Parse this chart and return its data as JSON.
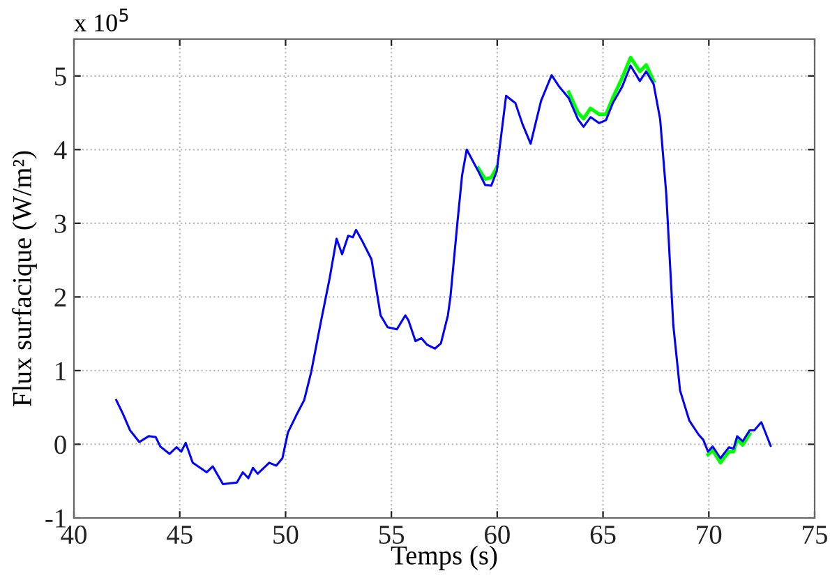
{
  "chart_data": {
    "type": "line",
    "xlabel": "Temps (s)",
    "ylabel": "Flux surfacique (W/m²)",
    "annotations": [
      "x 10$^{5}$"
    ],
    "x": [
      42.0,
      42.32,
      42.65,
      43.09,
      43.53,
      43.86,
      44.08,
      44.52,
      44.85,
      45.07,
      45.28,
      45.61,
      46.27,
      46.56,
      47.04,
      47.7,
      47.98,
      48.24,
      48.46,
      48.68,
      49.23,
      49.56,
      49.85,
      50.11,
      50.5,
      50.88,
      51.21,
      51.64,
      52.08,
      52.41,
      52.67,
      52.96,
      53.18,
      53.33,
      53.62,
      54.06,
      54.49,
      54.82,
      55.26,
      55.66,
      55.81,
      56.14,
      56.42,
      56.69,
      57.06,
      57.34,
      57.67,
      57.79,
      58.12,
      58.34,
      58.56,
      59.1,
      59.43,
      59.72,
      59.98,
      60.42,
      60.86,
      61.19,
      61.58,
      62.07,
      62.57,
      62.94,
      63.38,
      63.82,
      64.08,
      64.41,
      64.81,
      65.14,
      65.46,
      65.9,
      66.3,
      66.74,
      67.04,
      67.39,
      67.7,
      67.99,
      68.32,
      68.64,
      69.08,
      69.52,
      69.74,
      69.96,
      70.18,
      70.55,
      70.95,
      71.17,
      71.34,
      71.6,
      71.93,
      72.15,
      72.48,
      72.92
    ],
    "series": [
      {
        "color": "#00ff00",
        "values": [
          null,
          null,
          null,
          null,
          null,
          null,
          null,
          null,
          null,
          null,
          null,
          null,
          null,
          null,
          null,
          null,
          null,
          null,
          null,
          null,
          null,
          null,
          null,
          null,
          null,
          null,
          null,
          null,
          null,
          null,
          null,
          null,
          null,
          null,
          null,
          null,
          null,
          null,
          null,
          null,
          null,
          null,
          null,
          null,
          null,
          null,
          null,
          null,
          null,
          null,
          null,
          3.75,
          3.6,
          3.62,
          3.76,
          null,
          null,
          null,
          null,
          null,
          null,
          null,
          4.78,
          4.5,
          4.42,
          4.56,
          4.48,
          4.48,
          4.7,
          4.97,
          5.25,
          5.06,
          5.15,
          4.93,
          null,
          null,
          null,
          null,
          null,
          null,
          null,
          -0.14,
          -0.08,
          -0.25,
          -0.1,
          -0.1,
          0.07,
          -0.01,
          0.14,
          null,
          null,
          null
        ]
      },
      {
        "color": "#0000ff",
        "values": [
          0.6,
          0.41,
          0.19,
          0.03,
          0.11,
          0.1,
          -0.03,
          -0.13,
          -0.04,
          -0.1,
          0.02,
          -0.25,
          -0.38,
          -0.3,
          -0.54,
          -0.52,
          -0.38,
          -0.46,
          -0.32,
          -0.4,
          -0.25,
          -0.29,
          -0.19,
          0.16,
          0.39,
          0.6,
          0.98,
          1.62,
          2.25,
          2.79,
          2.58,
          2.83,
          2.81,
          2.91,
          2.76,
          2.51,
          1.75,
          1.59,
          1.56,
          1.75,
          1.68,
          1.4,
          1.44,
          1.35,
          1.3,
          1.37,
          1.75,
          2.0,
          3.01,
          3.65,
          4.0,
          3.71,
          3.52,
          3.51,
          3.71,
          4.73,
          4.63,
          4.35,
          4.08,
          4.66,
          5.01,
          4.85,
          4.7,
          4.41,
          4.31,
          4.44,
          4.36,
          4.4,
          4.63,
          4.85,
          5.14,
          4.93,
          5.06,
          4.89,
          4.41,
          3.39,
          1.62,
          0.73,
          0.32,
          0.13,
          0.06,
          -0.1,
          -0.03,
          -0.19,
          -0.04,
          -0.06,
          0.11,
          0.04,
          0.19,
          0.19,
          0.3,
          -0.02
        ]
      }
    ],
    "xlim": [
      40,
      75
    ],
    "xticks": [
      40,
      45,
      50,
      55,
      60,
      65,
      70,
      75
    ],
    "ylim": [
      -1,
      5.5
    ],
    "yticks": [
      -1,
      0,
      1,
      2,
      3,
      4,
      5
    ],
    "grid": true,
    "marker": "none",
    "line_style": "solid"
  }
}
